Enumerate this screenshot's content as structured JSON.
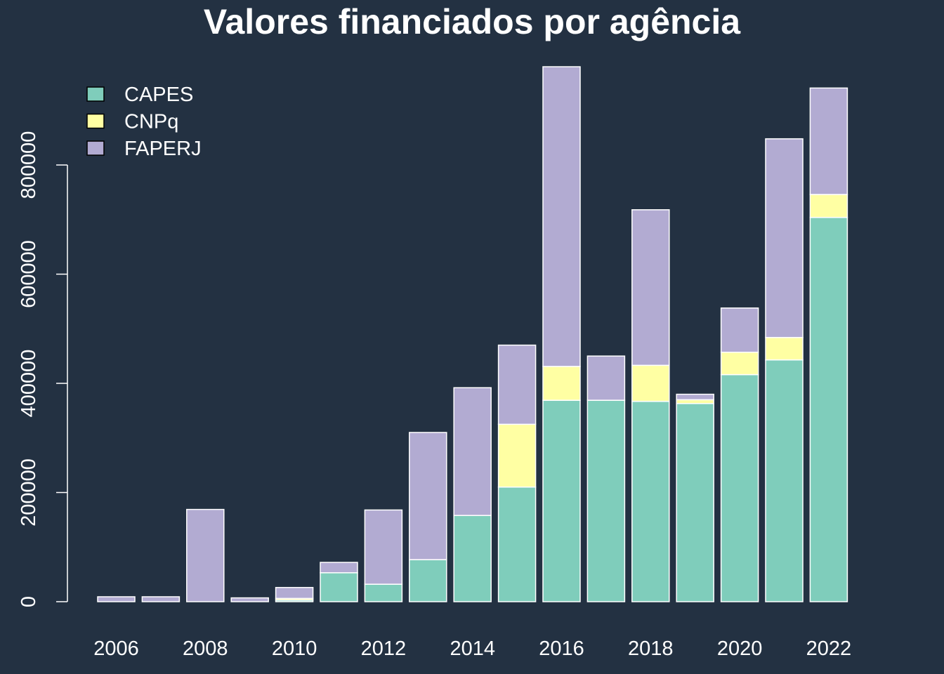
{
  "chart_data": {
    "type": "bar",
    "stacked": true,
    "title": "Valores financiados por agência",
    "xlabel": "",
    "ylabel": "",
    "categories": [
      "2006",
      "2007",
      "2008",
      "2009",
      "2010",
      "2011",
      "2012",
      "2013",
      "2014",
      "2015",
      "2016",
      "2017",
      "2018",
      "2019",
      "2020",
      "2021",
      "2022"
    ],
    "x_tick_labels": [
      "2006",
      "2008",
      "2010",
      "2012",
      "2014",
      "2016",
      "2018",
      "2020",
      "2022"
    ],
    "y_tick_labels": [
      "0",
      "200000",
      "400000",
      "600000",
      "800000"
    ],
    "ylim": [
      0,
      980000
    ],
    "legend_position": "top-left",
    "series": [
      {
        "name": "CAPES",
        "color": "#7fcdbb",
        "values": [
          0,
          0,
          0,
          0,
          3000,
          53000,
          32000,
          77000,
          158000,
          210000,
          369000,
          369000,
          367000,
          363000,
          416000,
          443000,
          704000
        ]
      },
      {
        "name": "CNPq",
        "color": "#ffffa3",
        "values": [
          0,
          0,
          0,
          0,
          3000,
          0,
          0,
          0,
          0,
          115000,
          62000,
          0,
          66000,
          7000,
          41000,
          41000,
          42000
        ]
      },
      {
        "name": "FAPERJ",
        "color": "#b2abd2",
        "values": [
          9000,
          9000,
          169000,
          7000,
          20000,
          19000,
          136000,
          233000,
          234000,
          145000,
          549000,
          81000,
          285000,
          10000,
          81000,
          364000,
          195000
        ]
      }
    ]
  }
}
